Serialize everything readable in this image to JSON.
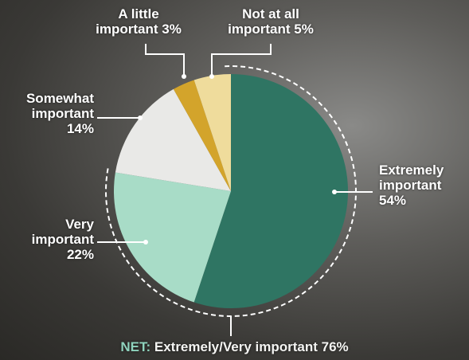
{
  "chart_data": {
    "type": "pie",
    "categories": [
      "Extremely important",
      "Very important",
      "Somewhat important",
      "A little important",
      "Not at all important"
    ],
    "values": [
      54,
      22,
      14,
      3,
      5
    ],
    "value_labels": [
      "54%",
      "22%",
      "14%",
      "3%",
      "5%"
    ],
    "colors": [
      "#2f7563",
      "#a8dcc7",
      "#e9e9e7",
      "#d3a42b",
      "#efdc9c"
    ],
    "annotation": {
      "prefix": "NET:",
      "text": "Extremely/Very important 76%"
    }
  }
}
